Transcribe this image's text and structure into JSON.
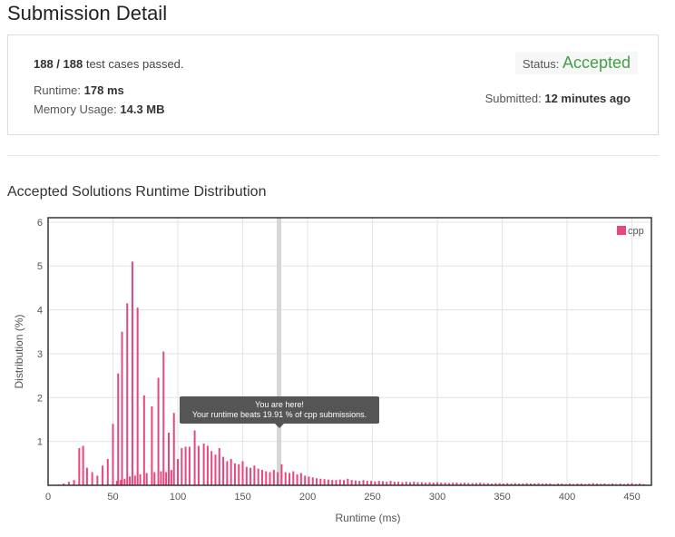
{
  "title": "Submission Detail",
  "detail": {
    "tests_passed": "188 / 188",
    "tests_suffix": "test cases passed.",
    "runtime_label": "Runtime:",
    "runtime_value": "178 ms",
    "memory_label": "Memory Usage:",
    "memory_value": "14.3 MB",
    "status_label": "Status:",
    "status_value": "Accepted",
    "submitted_label": "Submitted:",
    "submitted_value": "12 minutes ago"
  },
  "section_title": "Accepted Solutions Runtime Distribution",
  "tooltip": {
    "line1": "You are here!",
    "line2": "Your runtime beats 19.91 % of cpp submissions."
  },
  "colors": {
    "bar": "#e8467c",
    "accepted": "#43a047"
  },
  "chart_data": {
    "type": "bar",
    "xlabel": "Runtime (ms)",
    "ylabel": "Distribution (%)",
    "xlim": [
      0,
      465
    ],
    "ylim": [
      0,
      6.1
    ],
    "xticks": [
      0,
      50,
      100,
      150,
      200,
      250,
      300,
      350,
      400,
      450
    ],
    "yticks": [
      1,
      2,
      3,
      4,
      5,
      6
    ],
    "legend": {
      "entries": [
        "cpp"
      ],
      "position": "top-right"
    },
    "highlight_x": 178,
    "series": [
      {
        "name": "cpp",
        "points": [
          [
            8,
            0.02
          ],
          [
            12,
            0.04
          ],
          [
            16,
            0.08
          ],
          [
            20,
            0.12
          ],
          [
            24,
            0.85
          ],
          [
            27,
            0.9
          ],
          [
            30,
            0.4
          ],
          [
            34,
            0.3
          ],
          [
            38,
            0.22
          ],
          [
            42,
            0.45
          ],
          [
            46,
            0.6
          ],
          [
            50,
            1.4
          ],
          [
            53,
            0.1
          ],
          [
            54,
            2.55
          ],
          [
            56,
            0.12
          ],
          [
            57,
            3.5
          ],
          [
            59,
            0.15
          ],
          [
            61,
            4.15
          ],
          [
            63,
            0.2
          ],
          [
            65,
            5.1
          ],
          [
            67,
            0.22
          ],
          [
            69,
            4.05
          ],
          [
            71,
            0.25
          ],
          [
            74,
            2.05
          ],
          [
            76,
            0.28
          ],
          [
            80,
            1.8
          ],
          [
            82,
            0.3
          ],
          [
            85,
            2.45
          ],
          [
            87,
            0.32
          ],
          [
            89,
            3.05
          ],
          [
            91,
            0.3
          ],
          [
            93,
            1.2
          ],
          [
            95,
            0.35
          ],
          [
            97,
            1.65
          ],
          [
            100,
            0.6
          ],
          [
            103,
            0.85
          ],
          [
            106,
            0.88
          ],
          [
            109,
            0.88
          ],
          [
            113,
            1.25
          ],
          [
            116,
            0.9
          ],
          [
            120,
            0.95
          ],
          [
            123,
            0.9
          ],
          [
            126,
            0.78
          ],
          [
            129,
            0.7
          ],
          [
            132,
            0.85
          ],
          [
            135,
            0.65
          ],
          [
            138,
            0.55
          ],
          [
            141,
            0.6
          ],
          [
            144,
            0.5
          ],
          [
            147,
            0.48
          ],
          [
            150,
            0.55
          ],
          [
            153,
            0.42
          ],
          [
            156,
            0.4
          ],
          [
            159,
            0.45
          ],
          [
            162,
            0.38
          ],
          [
            165,
            0.35
          ],
          [
            168,
            0.32
          ],
          [
            171,
            0.3
          ],
          [
            174,
            0.35
          ],
          [
            177,
            0.3
          ],
          [
            180,
            0.48
          ],
          [
            183,
            0.3
          ],
          [
            186,
            0.28
          ],
          [
            189,
            0.32
          ],
          [
            192,
            0.25
          ],
          [
            195,
            0.28
          ],
          [
            198,
            0.22
          ],
          [
            201,
            0.2
          ],
          [
            204,
            0.18
          ],
          [
            207,
            0.16
          ],
          [
            210,
            0.15
          ],
          [
            213,
            0.14
          ],
          [
            216,
            0.13
          ],
          [
            219,
            0.12
          ],
          [
            222,
            0.12
          ],
          [
            225,
            0.13
          ],
          [
            228,
            0.12
          ],
          [
            231,
            0.15
          ],
          [
            234,
            0.12
          ],
          [
            237,
            0.11
          ],
          [
            240,
            0.1
          ],
          [
            243,
            0.12
          ],
          [
            246,
            0.1
          ],
          [
            249,
            0.1
          ],
          [
            252,
            0.09
          ],
          [
            255,
            0.1
          ],
          [
            258,
            0.09
          ],
          [
            261,
            0.08
          ],
          [
            264,
            0.1
          ],
          [
            267,
            0.08
          ],
          [
            270,
            0.08
          ],
          [
            273,
            0.07
          ],
          [
            276,
            0.08
          ],
          [
            279,
            0.07
          ],
          [
            282,
            0.08
          ],
          [
            285,
            0.07
          ],
          [
            288,
            0.07
          ],
          [
            291,
            0.06
          ],
          [
            294,
            0.07
          ],
          [
            297,
            0.06
          ],
          [
            300,
            0.07
          ],
          [
            303,
            0.06
          ],
          [
            306,
            0.06
          ],
          [
            309,
            0.05
          ],
          [
            312,
            0.06
          ],
          [
            315,
            0.06
          ],
          [
            318,
            0.05
          ],
          [
            321,
            0.06
          ],
          [
            324,
            0.05
          ],
          [
            327,
            0.05
          ],
          [
            330,
            0.05
          ],
          [
            333,
            0.06
          ],
          [
            336,
            0.05
          ],
          [
            339,
            0.05
          ],
          [
            342,
            0.04
          ],
          [
            345,
            0.05
          ],
          [
            348,
            0.05
          ],
          [
            351,
            0.04
          ],
          [
            354,
            0.05
          ],
          [
            357,
            0.04
          ],
          [
            360,
            0.05
          ],
          [
            363,
            0.04
          ],
          [
            366,
            0.04
          ],
          [
            369,
            0.05
          ],
          [
            372,
            0.04
          ],
          [
            375,
            0.04
          ],
          [
            378,
            0.05
          ],
          [
            381,
            0.04
          ],
          [
            384,
            0.04
          ],
          [
            387,
            0.04
          ],
          [
            390,
            0.03
          ],
          [
            393,
            0.04
          ],
          [
            396,
            0.04
          ],
          [
            399,
            0.03
          ],
          [
            402,
            0.04
          ],
          [
            405,
            0.03
          ],
          [
            408,
            0.04
          ],
          [
            411,
            0.04
          ],
          [
            414,
            0.03
          ],
          [
            417,
            0.04
          ],
          [
            420,
            0.05
          ],
          [
            423,
            0.04
          ],
          [
            426,
            0.03
          ],
          [
            429,
            0.04
          ],
          [
            432,
            0.03
          ],
          [
            435,
            0.04
          ],
          [
            438,
            0.03
          ],
          [
            441,
            0.04
          ],
          [
            444,
            0.03
          ],
          [
            447,
            0.04
          ],
          [
            450,
            0.05
          ],
          [
            453,
            0.03
          ],
          [
            456,
            0.04
          ],
          [
            459,
            0.03
          ]
        ]
      }
    ]
  }
}
